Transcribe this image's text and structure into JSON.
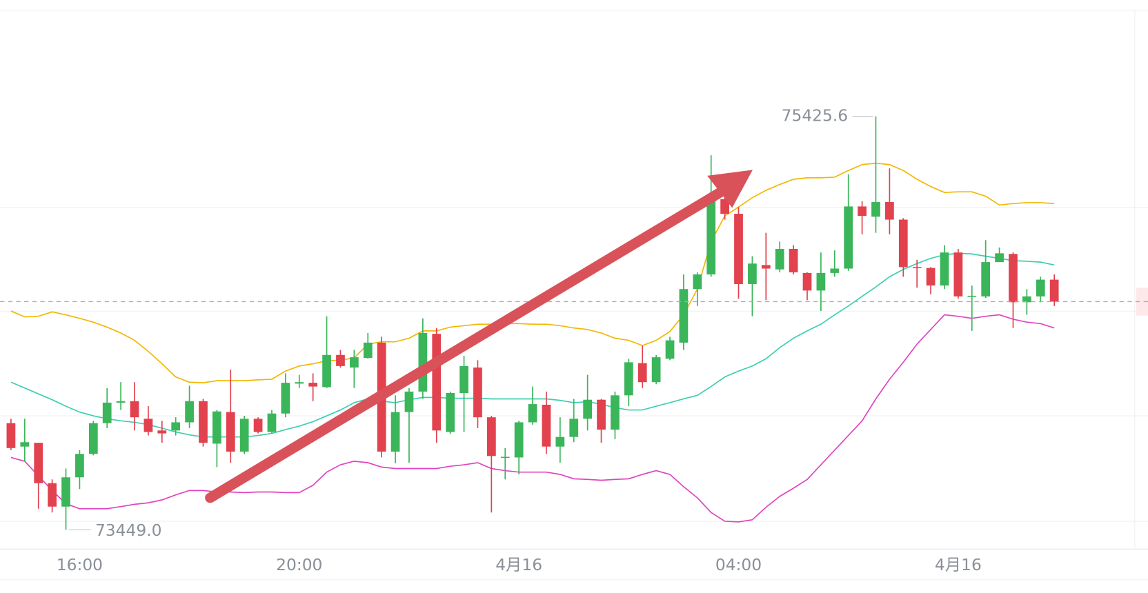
{
  "chart_data": {
    "type": "candlestick",
    "categories": [
      null,
      null,
      null,
      null,
      null,
      "16:00",
      null,
      null,
      null,
      null,
      null,
      null,
      null,
      null,
      null,
      null,
      null,
      null,
      null,
      null,
      null,
      "20:00",
      null,
      null,
      null,
      null,
      null,
      null,
      null,
      null,
      null,
      null,
      null,
      null,
      null,
      null,
      null,
      "4月16",
      null,
      null,
      null,
      null,
      null,
      null,
      null,
      null,
      null,
      null,
      null,
      null,
      null,
      null,
      null,
      "04:00",
      null,
      null,
      null,
      null,
      null,
      null,
      null,
      null,
      null,
      null,
      null,
      null,
      null,
      null,
      null,
      "4月16",
      null,
      null,
      null,
      null,
      null,
      null,
      null
    ],
    "open": [
      73959,
      73847,
      73865,
      73672,
      73560,
      73700,
      73812,
      73959,
      74057,
      74064,
      73980,
      73924,
      73924,
      73963,
      74064,
      73861,
      74012,
      73823,
      73980,
      73917,
      74005,
      74148,
      74152,
      74131,
      74285,
      74225,
      74271,
      74344,
      73823,
      74012,
      74110,
      74386,
      73917,
      74103,
      74225,
      73987,
      73795,
      73795,
      73963,
      74047,
      73847,
      73893,
      73980,
      74071,
      73928,
      74092,
      74246,
      74155,
      74267,
      74344,
      74600,
      74670,
      75030,
      74960,
      74624,
      74715,
      74694,
      74792,
      74677,
      74593,
      74677,
      74698,
      74995,
      74946,
      75016,
      74932,
      74705,
      74701,
      74617,
      74775,
      74565,
      74565,
      74729,
      74768,
      74537,
      74565,
      74645
    ],
    "high": [
      73980,
      73980,
      73865,
      73690,
      73742,
      73830,
      73970,
      74127,
      74155,
      74155,
      74040,
      73970,
      73987,
      74138,
      74075,
      74022,
      74215,
      73994,
      73987,
      74022,
      74197,
      74190,
      74197,
      74470,
      74309,
      74309,
      74390,
      74372,
      74092,
      74127,
      74460,
      74414,
      74110,
      74281,
      74260,
      73994,
      73840,
      73970,
      74134,
      74110,
      73987,
      74075,
      74190,
      74075,
      74110,
      74267,
      74330,
      74285,
      74372,
      74670,
      74680,
      75240,
      75114,
      74992,
      74757,
      74869,
      74827,
      74810,
      74680,
      74775,
      74785,
      75149,
      75020,
      75425.6,
      75177,
      74939,
      74740,
      74705,
      74810,
      74792,
      74617,
      74834,
      74799,
      74775,
      74600,
      74659,
      74670
    ],
    "low": [
      73830,
      73777,
      73550,
      73532,
      73449,
      73644,
      73805,
      73935,
      74022,
      73924,
      73900,
      73865,
      73900,
      73935,
      73847,
      73749,
      73770,
      73812,
      73910,
      73910,
      73987,
      74127,
      74064,
      74127,
      74225,
      74127,
      74267,
      73795,
      73767,
      73770,
      74075,
      73865,
      73907,
      73917,
      73935,
      73532,
      73690,
      73714,
      73952,
      73812,
      73770,
      73868,
      73924,
      73865,
      73882,
      74040,
      74127,
      74145,
      74260,
      74309,
      74519,
      74659,
      74932,
      74554,
      74470,
      74547,
      74680,
      74670,
      74547,
      74495,
      74659,
      74687,
      74862,
      74869,
      74862,
      74659,
      74607,
      74575,
      74600,
      74554,
      74400,
      74558,
      74729,
      74414,
      74477,
      74537,
      74519
    ],
    "close": [
      73840,
      73868,
      73672,
      73560,
      73700,
      73812,
      73959,
      74057,
      74064,
      73987,
      73917,
      73910,
      73963,
      74064,
      73865,
      74015,
      73823,
      73980,
      73917,
      74005,
      74152,
      74155,
      74134,
      74285,
      74232,
      74274,
      74344,
      73823,
      74012,
      74110,
      74390,
      73924,
      74103,
      74232,
      73987,
      73802,
      73798,
      73963,
      74050,
      73847,
      73893,
      73980,
      74071,
      73928,
      74092,
      74250,
      74155,
      74274,
      74355,
      74600,
      74670,
      75030,
      74960,
      74624,
      74722,
      74698,
      74792,
      74680,
      74593,
      74677,
      74698,
      74995,
      74950,
      75016,
      74932,
      74705,
      74701,
      74617,
      74775,
      74565,
      74568,
      74729,
      74771,
      74537,
      74565,
      74645,
      74540
    ],
    "up_color": "#3bb55a",
    "down_color": "#e2414e",
    "overlays": [
      {
        "color": "#f2b705",
        "values": [
          74495,
          74467,
          74470,
          74491,
          74477,
          74460,
          74442,
          74418,
          74390,
          74355,
          74302,
          74243,
          74180,
          74155,
          74152,
          74162,
          74162,
          74162,
          74166,
          74169,
          74208,
          74232,
          74243,
          74257,
          74260,
          74271,
          74337,
          74348,
          74348,
          74365,
          74400,
          74400,
          74418,
          74425,
          74432,
          74432,
          74435,
          74435,
          74432,
          74432,
          74425,
          74414,
          74407,
          74390,
          74365,
          74355,
          74330,
          74355,
          74397,
          74477,
          74600,
          74827,
          74950,
          74992,
          75037,
          75072,
          75100,
          75125,
          75132,
          75132,
          75135,
          75167,
          75195,
          75202,
          75195,
          75167,
          75125,
          75090,
          75062,
          75065,
          75065,
          75044,
          75002,
          75009,
          75013,
          75013,
          75009
        ]
      },
      {
        "color": "#3ccfae",
        "values": [
          74155,
          74127,
          74099,
          74071,
          74040,
          74012,
          73994,
          73980,
          73970,
          73963,
          73952,
          73935,
          73917,
          73903,
          73893,
          73893,
          73893,
          73893,
          73900,
          73910,
          73928,
          73945,
          73966,
          73994,
          74022,
          74057,
          74075,
          74064,
          74057,
          74071,
          74082,
          74082,
          74078,
          74078,
          74078,
          74075,
          74075,
          74075,
          74075,
          74075,
          74068,
          74057,
          74061,
          74050,
          74033,
          74022,
          74022,
          74040,
          74057,
          74075,
          74092,
          74134,
          74180,
          74208,
          74232,
          74267,
          74320,
          74365,
          74400,
          74432,
          74477,
          74519,
          74565,
          74610,
          74659,
          74694,
          74722,
          74747,
          74764,
          74771,
          74768,
          74757,
          74747,
          74736,
          74733,
          74729,
          74715
        ]
      },
      {
        "color": "#e044bf",
        "values": [
          73795,
          73777,
          73707,
          73637,
          73574,
          73550,
          73550,
          73550,
          73560,
          73571,
          73578,
          73592,
          73616,
          73637,
          73637,
          73630,
          73630,
          73627,
          73630,
          73630,
          73627,
          73627,
          73662,
          73725,
          73760,
          73777,
          73770,
          73749,
          73742,
          73742,
          73742,
          73742,
          73753,
          73760,
          73770,
          73742,
          73732,
          73725,
          73725,
          73725,
          73714,
          73693,
          73690,
          73686,
          73690,
          73693,
          73714,
          73732,
          73714,
          73655,
          73602,
          73532,
          73490,
          73487,
          73497,
          73557,
          73609,
          73648,
          73690,
          73760,
          73830,
          73900,
          73970,
          74075,
          74169,
          74250,
          74337,
          74407,
          74477,
          74470,
          74460,
          74470,
          74477,
          74456,
          74442,
          74435,
          74414
        ]
      }
    ],
    "high_label": 75425.6,
    "low_label": {
      "value": 73449,
      "label": "73449.0"
    },
    "ylim": [
      73357,
      75933
    ]
  }
}
